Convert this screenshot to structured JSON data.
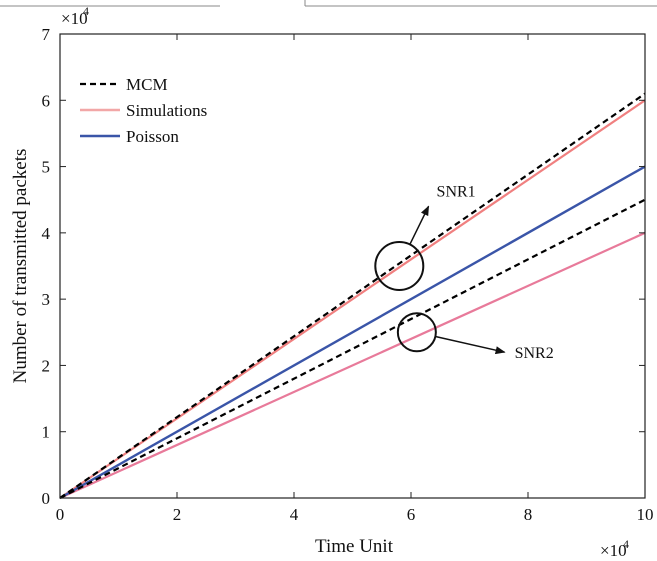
{
  "chart_data": {
    "type": "line",
    "xlabel": "Time Unit",
    "ylabel": "Number of transmitted packets",
    "x_multiplier": "×10",
    "x_multiplier_exp": "4",
    "y_multiplier": "×10",
    "y_multiplier_exp": "4",
    "xlim": [
      0,
      10
    ],
    "ylim": [
      0,
      7
    ],
    "xticks": [
      "0",
      "2",
      "4",
      "6",
      "8",
      "10"
    ],
    "yticks": [
      "0",
      "1",
      "2",
      "3",
      "4",
      "5",
      "6",
      "7"
    ],
    "grid": false,
    "legend_position": "top-left",
    "legend": [
      {
        "label": "MCM",
        "style": "dashed",
        "color": "#000000"
      },
      {
        "label": "Simulations",
        "style": "solid",
        "color": "#f2a7a7"
      },
      {
        "label": "Poisson",
        "style": "solid",
        "color": "#3a55a8"
      }
    ],
    "series": [
      {
        "legend_ref": "MCM",
        "group": "SNR1",
        "style": "dashed",
        "color": "#000000",
        "x": [
          0,
          10
        ],
        "y": [
          0,
          6.1
        ]
      },
      {
        "legend_ref": "Simulations",
        "group": "SNR1",
        "style": "solid",
        "color": "#f08080",
        "x": [
          0,
          10
        ],
        "y": [
          0,
          6.0
        ]
      },
      {
        "legend_ref": "Poisson",
        "style": "solid",
        "color": "#3a55a8",
        "x": [
          0,
          10
        ],
        "y": [
          0,
          5.0
        ]
      },
      {
        "legend_ref": "MCM",
        "group": "SNR2",
        "style": "dashed",
        "color": "#000000",
        "x": [
          0,
          10
        ],
        "y": [
          0,
          4.5
        ]
      },
      {
        "legend_ref": "Simulations",
        "group": "SNR2",
        "style": "solid",
        "color": "#e87a9a",
        "x": [
          0,
          10
        ],
        "y": [
          0,
          4.0
        ]
      }
    ],
    "annotations": [
      {
        "text": "SNR1",
        "circle_center": [
          5.8,
          3.5
        ],
        "arrow_to": [
          6.3,
          4.4
        ]
      },
      {
        "text": "SNR2",
        "circle_center": [
          6.1,
          2.5
        ],
        "arrow_to": [
          7.6,
          2.2
        ]
      }
    ]
  }
}
